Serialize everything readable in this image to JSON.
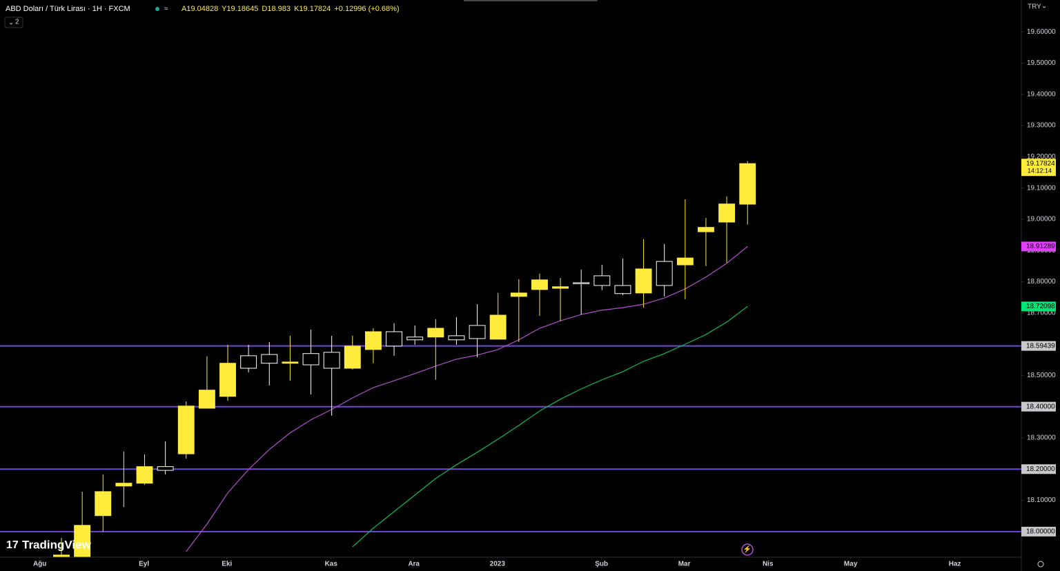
{
  "chart_data": {
    "type": "candlestick",
    "title": "ABD Doları / Türk Lirası · 1H · FXCM",
    "ohlc_prefixes": [
      "A",
      "Y",
      "D",
      "K"
    ],
    "change_label": "+0.12996 (+0.68%)",
    "currency": "TRY",
    "indicator_count": "2",
    "logo": "TradingView",
    "countdown": "14:12:14",
    "up_color": "#ffeb3b",
    "down_color": "#ffffff",
    "categories": [
      null,
      null,
      null,
      null,
      null,
      null,
      null,
      null,
      null,
      null,
      null,
      null,
      null,
      null,
      null,
      null,
      null,
      null,
      null,
      null,
      null,
      null,
      null,
      null,
      null,
      null,
      null,
      null,
      null,
      null,
      null,
      null,
      null,
      null
    ],
    "open": [
      17.918,
      17.91,
      18.051,
      18.146,
      18.155,
      18.208,
      18.249,
      18.395,
      18.433,
      18.563,
      18.567,
      18.539,
      18.57,
      18.574,
      18.523,
      18.583,
      18.64,
      18.623,
      18.623,
      18.627,
      18.66,
      18.616,
      18.753,
      18.775,
      18.779,
      18.797,
      18.819,
      18.788,
      18.764,
      18.865,
      18.854,
      18.96,
      18.991,
      19.04828
    ],
    "high": [
      17.98,
      18.128,
      18.183,
      18.256,
      18.247,
      18.289,
      18.417,
      18.561,
      18.598,
      18.598,
      18.607,
      18.627,
      18.647,
      18.627,
      18.627,
      18.651,
      18.667,
      18.66,
      18.68,
      18.687,
      18.728,
      18.764,
      18.808,
      18.826,
      18.812,
      18.839,
      18.854,
      18.874,
      18.936,
      18.921,
      19.064,
      19.004,
      19.073,
      19.18645
    ],
    "low": [
      17.918,
      17.9,
      18.0,
      18.079,
      18.15,
      18.183,
      18.234,
      18.395,
      18.419,
      18.51,
      18.468,
      18.483,
      18.439,
      18.371,
      18.519,
      18.539,
      18.563,
      18.598,
      18.486,
      18.598,
      18.558,
      18.616,
      18.607,
      18.691,
      18.675,
      18.695,
      18.773,
      18.757,
      18.717,
      18.753,
      18.744,
      18.85,
      18.861,
      18.983
    ],
    "close": [
      17.925,
      18.02,
      18.128,
      18.155,
      18.208,
      18.196,
      18.402,
      18.453,
      18.539,
      18.523,
      18.539,
      18.543,
      18.534,
      18.523,
      18.594,
      18.64,
      18.594,
      18.614,
      18.651,
      18.614,
      18.618,
      18.693,
      18.764,
      18.806,
      18.784,
      18.795,
      18.788,
      18.762,
      18.841,
      18.788,
      18.876,
      18.974,
      19.049,
      19.17824
    ],
    "series": [
      {
        "color": "#b54fd1",
        "label_color": "#e040fb",
        "values": [
          null,
          null,
          null,
          null,
          null,
          null,
          17.936,
          18.024,
          18.124,
          18.199,
          18.263,
          18.316,
          18.358,
          18.391,
          18.428,
          18.461,
          18.483,
          18.506,
          18.53,
          18.552,
          18.565,
          18.583,
          18.614,
          18.651,
          18.675,
          18.695,
          18.709,
          18.717,
          18.728,
          18.748,
          18.777,
          18.815,
          18.859,
          18.91289
        ]
      },
      {
        "color": "#0fbf4f",
        "label_color": "#00e676",
        "values": [
          null,
          null,
          null,
          null,
          null,
          null,
          null,
          null,
          null,
          null,
          null,
          null,
          null,
          null,
          17.951,
          18.011,
          18.064,
          18.117,
          18.17,
          18.214,
          18.254,
          18.296,
          18.34,
          18.386,
          18.424,
          18.457,
          18.486,
          18.512,
          18.545,
          18.57,
          18.6,
          18.631,
          18.671,
          18.72098
        ]
      }
    ],
    "hlines": [
      18.59439,
      18.4,
      18.2,
      18.0
    ],
    "hline_labels": [
      "18.59439",
      "18.40000",
      "18.20000",
      "18.00000"
    ],
    "hline_color": "#7347d6",
    "ylim": [
      17.918,
      19.702
    ],
    "yticks": [
      {
        "value": 18.0,
        "label": "18.00000"
      },
      {
        "value": 18.1,
        "label": "18.10000"
      },
      {
        "value": 18.2,
        "label": "18.20000"
      },
      {
        "value": 18.3,
        "label": "18.30000"
      },
      {
        "value": 18.4,
        "label": "18.40000"
      },
      {
        "value": 18.5,
        "label": "18.50000"
      },
      {
        "value": 18.6,
        "label": "18.60000"
      },
      {
        "value": 18.7,
        "label": "18.70000"
      },
      {
        "value": 18.8,
        "label": "18.80000"
      },
      {
        "value": 18.9,
        "label": "18.90000"
      },
      {
        "value": 19.0,
        "label": "19.00000"
      },
      {
        "value": 19.1,
        "label": "19.10000"
      },
      {
        "value": 19.2,
        "label": "19.20000"
      },
      {
        "value": 19.3,
        "label": "19.30000"
      },
      {
        "value": 19.4,
        "label": "19.40000"
      },
      {
        "value": 19.5,
        "label": "19.50000"
      },
      {
        "value": 19.6,
        "label": "19.60000"
      }
    ],
    "xlim": [
      -2.954,
      46.17
    ],
    "xticks": [
      {
        "value": -1.04,
        "label": "Ağu"
      },
      {
        "value": 3.97,
        "label": "Eyl"
      },
      {
        "value": 7.96,
        "label": "Eki"
      },
      {
        "value": 12.97,
        "label": "Kas"
      },
      {
        "value": 16.95,
        "label": "Ara"
      },
      {
        "value": 20.97,
        "label": "2023"
      },
      {
        "value": 25.98,
        "label": "Şub"
      },
      {
        "value": 29.96,
        "label": "Mar"
      },
      {
        "value": 33.98,
        "label": "Nis"
      },
      {
        "value": 37.96,
        "label": "May"
      },
      {
        "value": 42.97,
        "label": "Haz"
      }
    ]
  }
}
